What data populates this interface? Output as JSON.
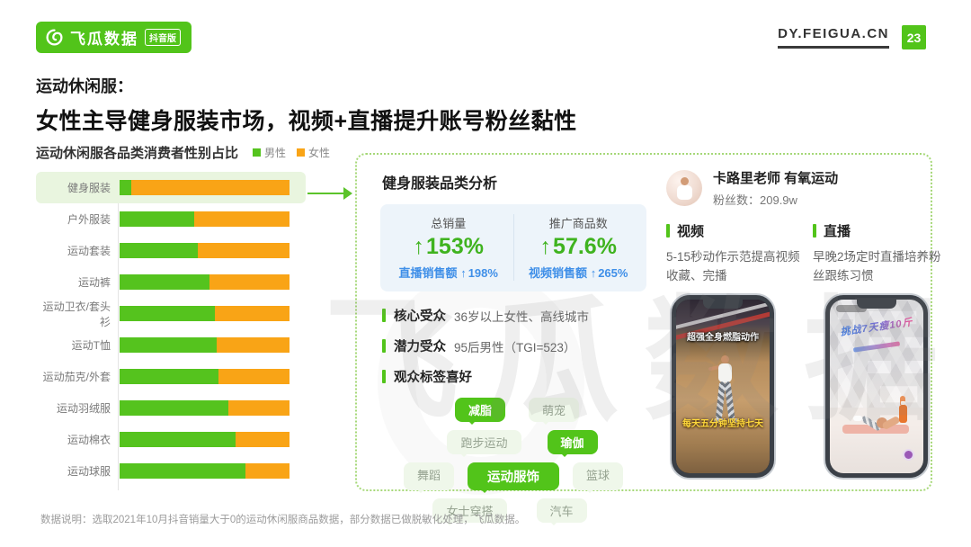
{
  "page": {
    "logo_brand": "飞瓜数据",
    "logo_edition": "抖音版",
    "site_url": "DY.FEIGUA.CN",
    "page_number": "23",
    "title_sub": "运动休闲服：",
    "title_main": "女性主导健身服装市场，视频+直播提升账号粉丝黏性",
    "watermark": "飞瓜数据",
    "footnote": "数据说明：选取2021年10月抖音销量大于0的运动休闲服商品数据，部分数据已做脱敏化处理，飞瓜数据。"
  },
  "chart": {
    "title": "运动休闲服各品类消费者性别占比",
    "highlight": "健身服装"
  },
  "chart_data": {
    "type": "bar",
    "orientation": "horizontal",
    "stacked": true,
    "unit": "%",
    "categories": [
      "健身服装",
      "户外服装",
      "运动套装",
      "运动裤",
      "运动卫衣/套头衫",
      "运动T恤",
      "运动茄克/外套",
      "运动羽绒服",
      "运动棉衣",
      "运动球服"
    ],
    "series": [
      {
        "name": "男性",
        "color": "#55c31e",
        "values": [
          7,
          44,
          46,
          53,
          56,
          57,
          58,
          64,
          68,
          74
        ]
      },
      {
        "name": "女性",
        "color": "#f9a416",
        "values": [
          93,
          56,
          54,
          47,
          44,
          43,
          42,
          36,
          32,
          26
        ]
      }
    ],
    "xlim": [
      0,
      100
    ],
    "grid": false,
    "legend_position": "top-right"
  },
  "analysis": {
    "title": "健身服装品类分析",
    "metrics": [
      {
        "label": "总销量",
        "value": "153%",
        "sub_label": "直播销售额",
        "sub_value": "198%"
      },
      {
        "label": "推广商品数",
        "value": "57.6%",
        "sub_label": "视频销售额",
        "sub_value": "265%"
      }
    ],
    "bullets": [
      {
        "label": "核心受众",
        "text": "36岁以上女性、高线城市"
      },
      {
        "label": "潜力受众",
        "text": "95后男性（TGI=523）"
      },
      {
        "label": "观众标签喜好",
        "text": ""
      }
    ],
    "tags": [
      {
        "text": "减脂",
        "emphasis": true
      },
      {
        "text": "萌宠",
        "emphasis": false
      },
      {
        "text": "跑步运动",
        "emphasis": false
      },
      {
        "text": "瑜伽",
        "emphasis": true
      },
      {
        "text": "舞蹈",
        "emphasis": false
      },
      {
        "text": "运动服饰",
        "emphasis": true
      },
      {
        "text": "篮球",
        "emphasis": false
      },
      {
        "text": "女士穿搭",
        "emphasis": false
      },
      {
        "text": "汽车",
        "emphasis": false
      }
    ]
  },
  "account": {
    "name": "卡路里老师 有氧运动",
    "fans": "粉丝数：209.9w",
    "columns": [
      {
        "label": "视频",
        "desc": "5-15秒动作示范提高视频收藏、完播"
      },
      {
        "label": "直播",
        "desc": "早晚2场定时直播培养粉丝跟练习惯"
      }
    ],
    "phone1": {
      "caption_top": "超强全身燃脂动作",
      "caption_bottom": "每天五分钟坚持七天"
    },
    "phone2": {
      "badge": "挑战7天瘦10斤"
    }
  },
  "colors": {
    "brand_green": "#52c41a",
    "male_green": "#55c31e",
    "female_orange": "#f9a416",
    "metric_green": "#3fb31f",
    "metric_blue": "#3f8fe8",
    "highlight_row": "#e9f5df",
    "panel_border": "#a6d878"
  }
}
